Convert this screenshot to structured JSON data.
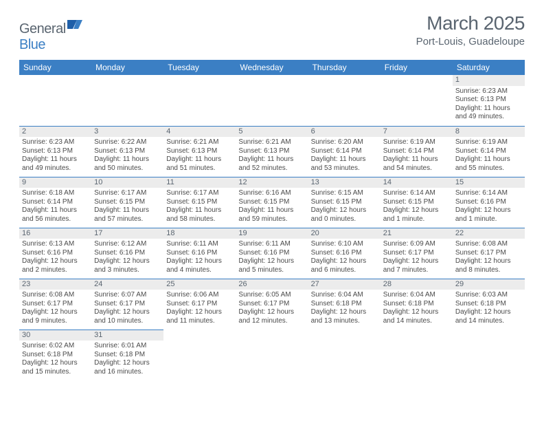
{
  "logo": {
    "general": "General",
    "blue": "Blue"
  },
  "title": "March 2025",
  "location": "Port-Louis, Guadeloupe",
  "days_header": [
    "Sunday",
    "Monday",
    "Tuesday",
    "Wednesday",
    "Thursday",
    "Friday",
    "Saturday"
  ],
  "calendar": {
    "type": "table",
    "header_bg": "#3b7fc4",
    "header_fg": "#ffffff",
    "border_color": "#3b7fc4",
    "daynum_bg": "#ececec",
    "text_color": "#4a4a4a",
    "font_size_cell": 10,
    "font_size_header": 12
  },
  "weeks": [
    [
      null,
      null,
      null,
      null,
      null,
      null,
      {
        "n": "1",
        "sr": "Sunrise: 6:23 AM",
        "ss": "Sunset: 6:13 PM",
        "dl": "Daylight: 11 hours and 49 minutes."
      }
    ],
    [
      {
        "n": "2",
        "sr": "Sunrise: 6:23 AM",
        "ss": "Sunset: 6:13 PM",
        "dl": "Daylight: 11 hours and 49 minutes."
      },
      {
        "n": "3",
        "sr": "Sunrise: 6:22 AM",
        "ss": "Sunset: 6:13 PM",
        "dl": "Daylight: 11 hours and 50 minutes."
      },
      {
        "n": "4",
        "sr": "Sunrise: 6:21 AM",
        "ss": "Sunset: 6:13 PM",
        "dl": "Daylight: 11 hours and 51 minutes."
      },
      {
        "n": "5",
        "sr": "Sunrise: 6:21 AM",
        "ss": "Sunset: 6:13 PM",
        "dl": "Daylight: 11 hours and 52 minutes."
      },
      {
        "n": "6",
        "sr": "Sunrise: 6:20 AM",
        "ss": "Sunset: 6:14 PM",
        "dl": "Daylight: 11 hours and 53 minutes."
      },
      {
        "n": "7",
        "sr": "Sunrise: 6:19 AM",
        "ss": "Sunset: 6:14 PM",
        "dl": "Daylight: 11 hours and 54 minutes."
      },
      {
        "n": "8",
        "sr": "Sunrise: 6:19 AM",
        "ss": "Sunset: 6:14 PM",
        "dl": "Daylight: 11 hours and 55 minutes."
      }
    ],
    [
      {
        "n": "9",
        "sr": "Sunrise: 6:18 AM",
        "ss": "Sunset: 6:14 PM",
        "dl": "Daylight: 11 hours and 56 minutes."
      },
      {
        "n": "10",
        "sr": "Sunrise: 6:17 AM",
        "ss": "Sunset: 6:15 PM",
        "dl": "Daylight: 11 hours and 57 minutes."
      },
      {
        "n": "11",
        "sr": "Sunrise: 6:17 AM",
        "ss": "Sunset: 6:15 PM",
        "dl": "Daylight: 11 hours and 58 minutes."
      },
      {
        "n": "12",
        "sr": "Sunrise: 6:16 AM",
        "ss": "Sunset: 6:15 PM",
        "dl": "Daylight: 11 hours and 59 minutes."
      },
      {
        "n": "13",
        "sr": "Sunrise: 6:15 AM",
        "ss": "Sunset: 6:15 PM",
        "dl": "Daylight: 12 hours and 0 minutes."
      },
      {
        "n": "14",
        "sr": "Sunrise: 6:14 AM",
        "ss": "Sunset: 6:15 PM",
        "dl": "Daylight: 12 hours and 1 minute."
      },
      {
        "n": "15",
        "sr": "Sunrise: 6:14 AM",
        "ss": "Sunset: 6:16 PM",
        "dl": "Daylight: 12 hours and 1 minute."
      }
    ],
    [
      {
        "n": "16",
        "sr": "Sunrise: 6:13 AM",
        "ss": "Sunset: 6:16 PM",
        "dl": "Daylight: 12 hours and 2 minutes."
      },
      {
        "n": "17",
        "sr": "Sunrise: 6:12 AM",
        "ss": "Sunset: 6:16 PM",
        "dl": "Daylight: 12 hours and 3 minutes."
      },
      {
        "n": "18",
        "sr": "Sunrise: 6:11 AM",
        "ss": "Sunset: 6:16 PM",
        "dl": "Daylight: 12 hours and 4 minutes."
      },
      {
        "n": "19",
        "sr": "Sunrise: 6:11 AM",
        "ss": "Sunset: 6:16 PM",
        "dl": "Daylight: 12 hours and 5 minutes."
      },
      {
        "n": "20",
        "sr": "Sunrise: 6:10 AM",
        "ss": "Sunset: 6:16 PM",
        "dl": "Daylight: 12 hours and 6 minutes."
      },
      {
        "n": "21",
        "sr": "Sunrise: 6:09 AM",
        "ss": "Sunset: 6:17 PM",
        "dl": "Daylight: 12 hours and 7 minutes."
      },
      {
        "n": "22",
        "sr": "Sunrise: 6:08 AM",
        "ss": "Sunset: 6:17 PM",
        "dl": "Daylight: 12 hours and 8 minutes."
      }
    ],
    [
      {
        "n": "23",
        "sr": "Sunrise: 6:08 AM",
        "ss": "Sunset: 6:17 PM",
        "dl": "Daylight: 12 hours and 9 minutes."
      },
      {
        "n": "24",
        "sr": "Sunrise: 6:07 AM",
        "ss": "Sunset: 6:17 PM",
        "dl": "Daylight: 12 hours and 10 minutes."
      },
      {
        "n": "25",
        "sr": "Sunrise: 6:06 AM",
        "ss": "Sunset: 6:17 PM",
        "dl": "Daylight: 12 hours and 11 minutes."
      },
      {
        "n": "26",
        "sr": "Sunrise: 6:05 AM",
        "ss": "Sunset: 6:17 PM",
        "dl": "Daylight: 12 hours and 12 minutes."
      },
      {
        "n": "27",
        "sr": "Sunrise: 6:04 AM",
        "ss": "Sunset: 6:18 PM",
        "dl": "Daylight: 12 hours and 13 minutes."
      },
      {
        "n": "28",
        "sr": "Sunrise: 6:04 AM",
        "ss": "Sunset: 6:18 PM",
        "dl": "Daylight: 12 hours and 14 minutes."
      },
      {
        "n": "29",
        "sr": "Sunrise: 6:03 AM",
        "ss": "Sunset: 6:18 PM",
        "dl": "Daylight: 12 hours and 14 minutes."
      }
    ],
    [
      {
        "n": "30",
        "sr": "Sunrise: 6:02 AM",
        "ss": "Sunset: 6:18 PM",
        "dl": "Daylight: 12 hours and 15 minutes."
      },
      {
        "n": "31",
        "sr": "Sunrise: 6:01 AM",
        "ss": "Sunset: 6:18 PM",
        "dl": "Daylight: 12 hours and 16 minutes."
      },
      null,
      null,
      null,
      null,
      null
    ]
  ]
}
